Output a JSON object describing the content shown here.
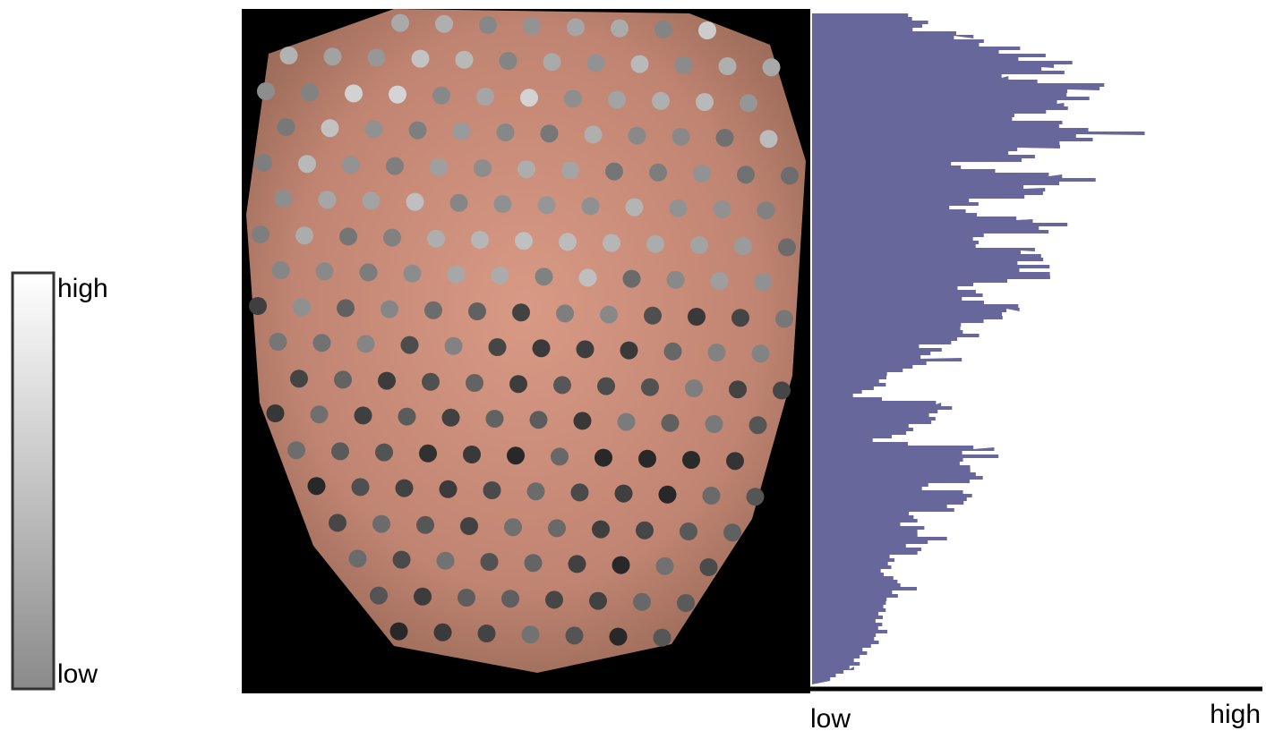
{
  "colorbar": {
    "top_label": "high",
    "bottom_label": "low"
  },
  "histogram": {
    "axis_left_label": "low",
    "axis_right_label": "high"
  }
}
